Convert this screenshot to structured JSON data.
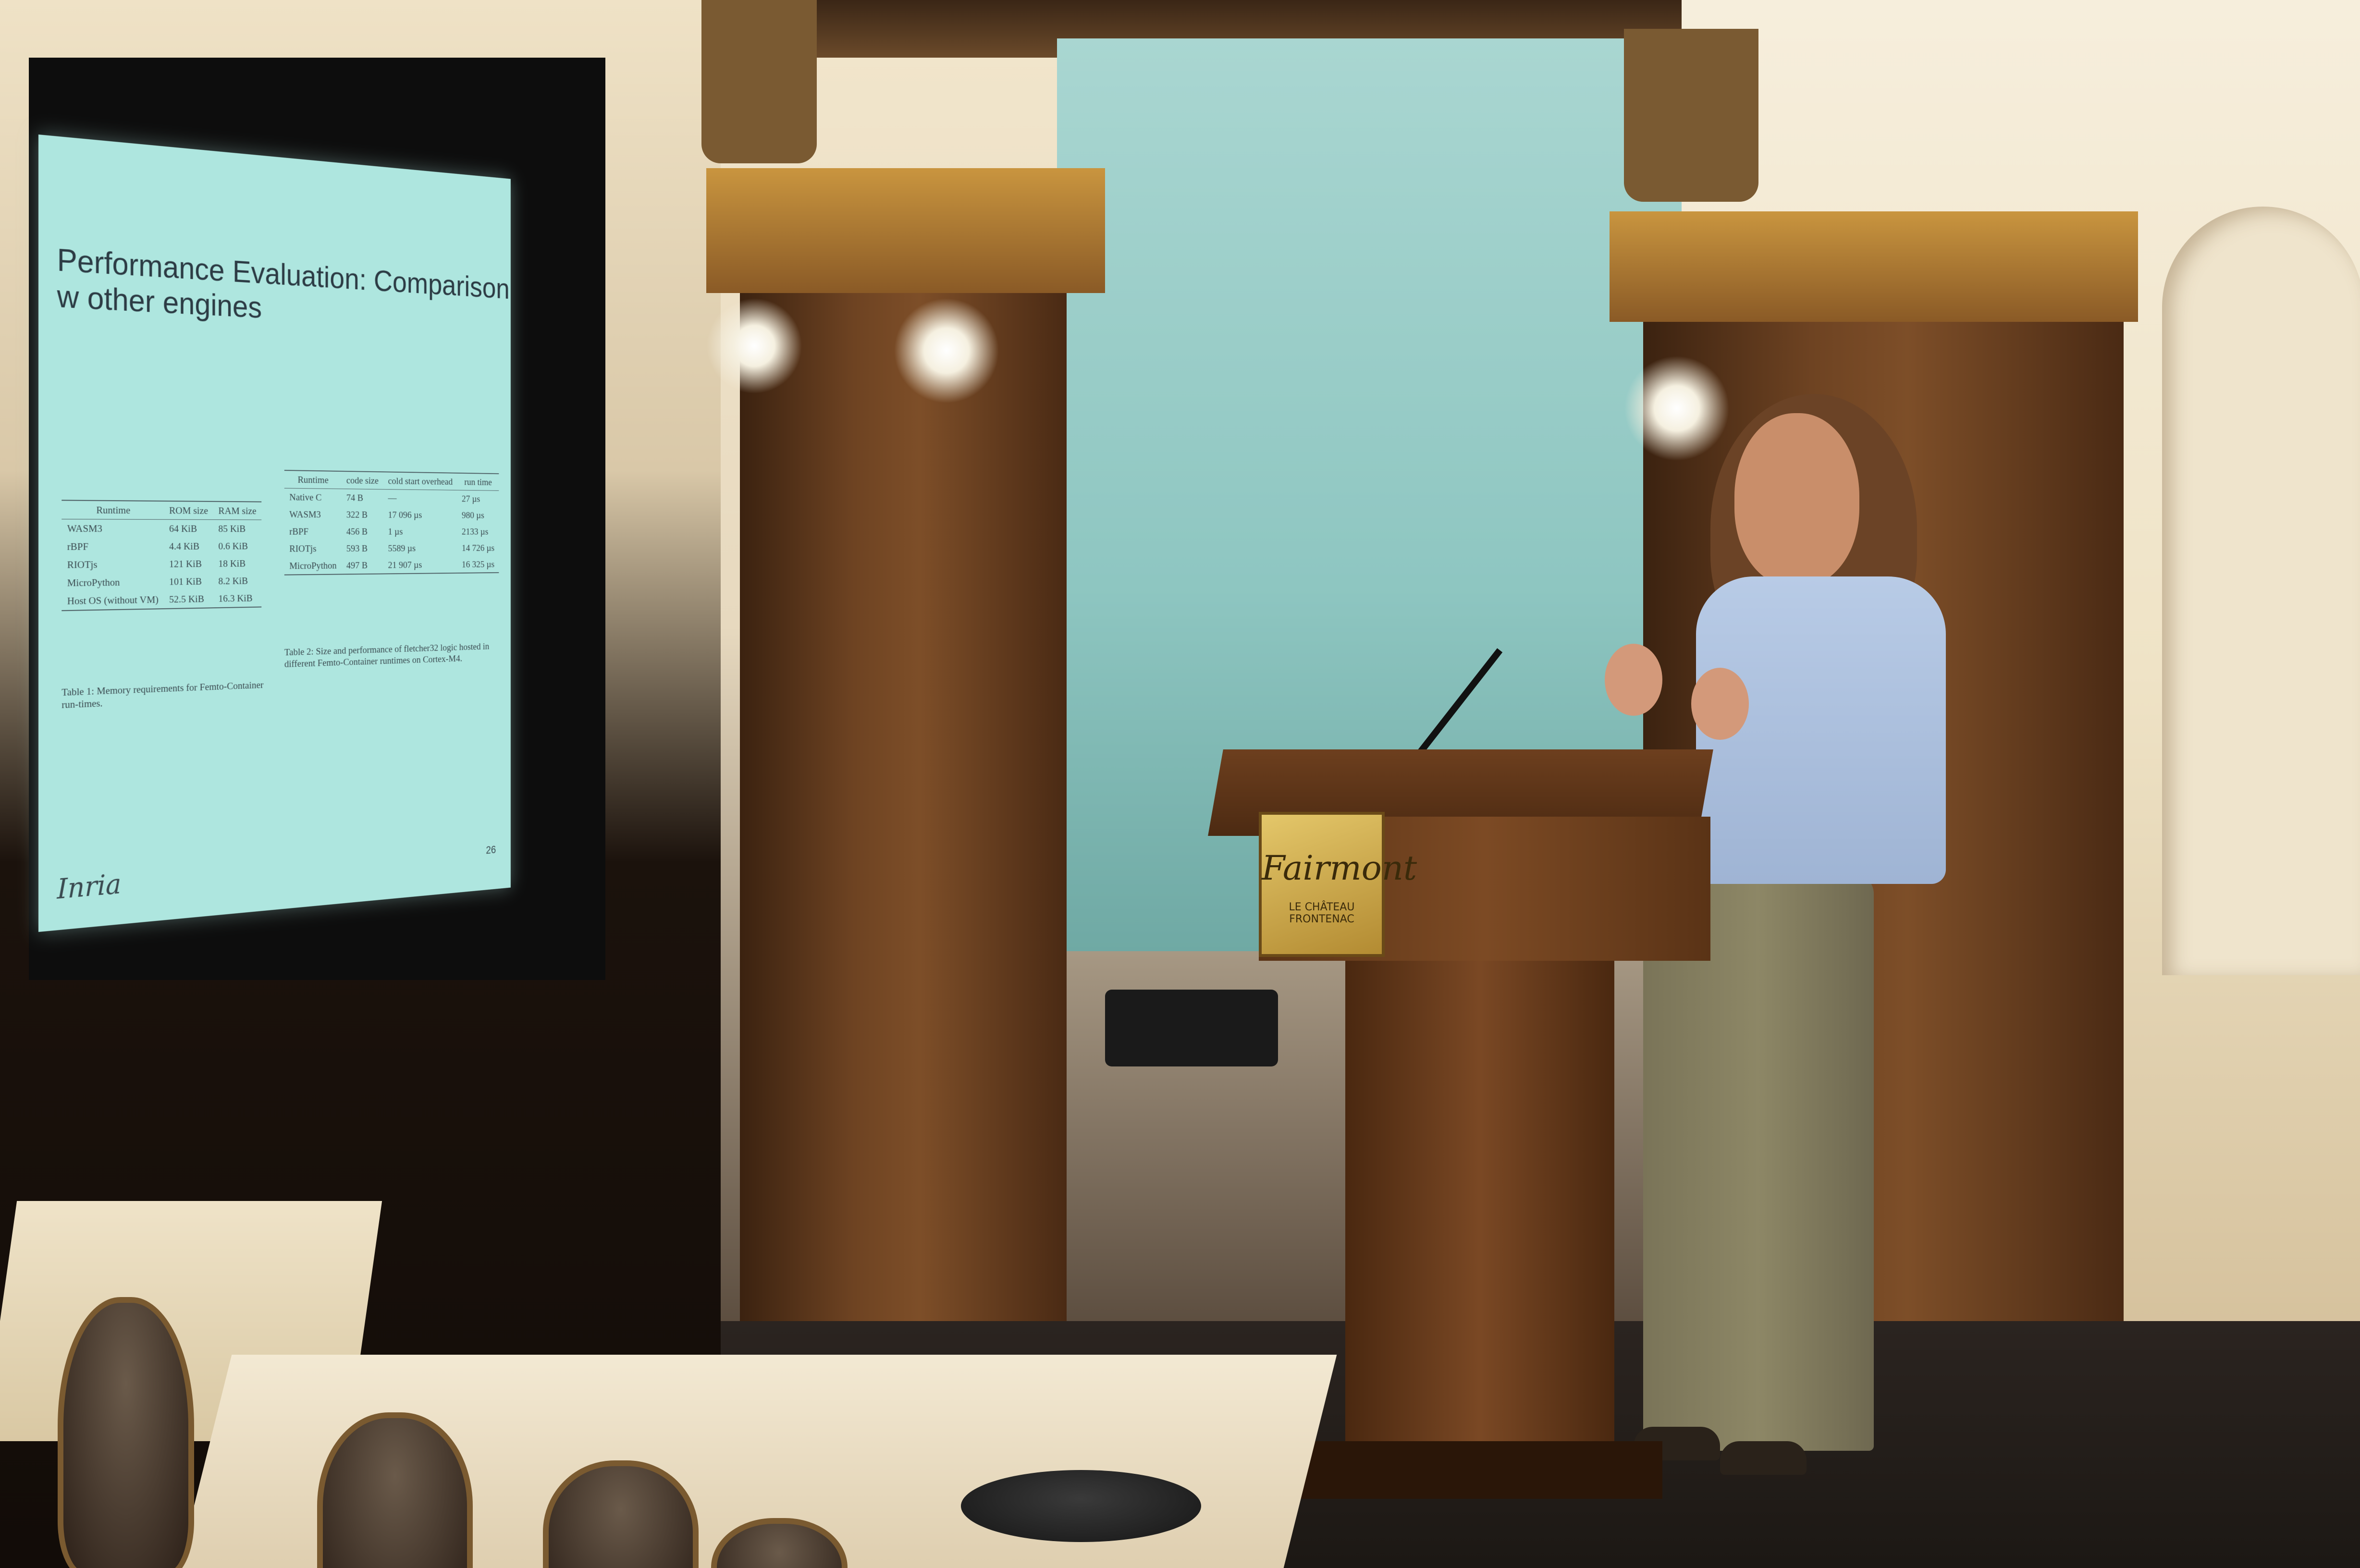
{
  "slide": {
    "title": "Performance Evaluation: Comparison w other engines",
    "table1": {
      "headers": [
        "Runtime",
        "ROM size",
        "RAM size"
      ],
      "rows": [
        [
          "WASM3",
          "64 KiB",
          "85 KiB"
        ],
        [
          "rBPF",
          "4.4 KiB",
          "0.6 KiB"
        ],
        [
          "RIOTjs",
          "121 KiB",
          "18 KiB"
        ],
        [
          "MicroPython",
          "101 KiB",
          "8.2 KiB"
        ],
        [
          "Host OS (without VM)",
          "52.5 KiB",
          "16.3 KiB"
        ]
      ],
      "caption": "Table 1: Memory requirements for Femto-Container run-times."
    },
    "table2": {
      "headers": [
        "Runtime",
        "code size",
        "cold start overhead",
        "run time"
      ],
      "rows": [
        [
          "Native C",
          "74 B",
          "—",
          "27 µs"
        ],
        [
          "WASM3",
          "322 B",
          "17 096 µs",
          "980 µs"
        ],
        [
          "rBPF",
          "456 B",
          "1 µs",
          "2133 µs"
        ],
        [
          "RIOTjs",
          "593 B",
          "5589 µs",
          "14 726 µs"
        ],
        [
          "MicroPython",
          "497 B",
          "21 907 µs",
          "16 325 µs"
        ]
      ],
      "caption": "Table 2: Size and performance of fletcher32 logic hosted in different Femto-Container runtimes on Cortex-M4."
    },
    "logo": "Inria",
    "page_number": "26"
  },
  "podium": {
    "brand": "Fairmont",
    "subtitle": "LE CHÂTEAU FRONTENAC"
  }
}
